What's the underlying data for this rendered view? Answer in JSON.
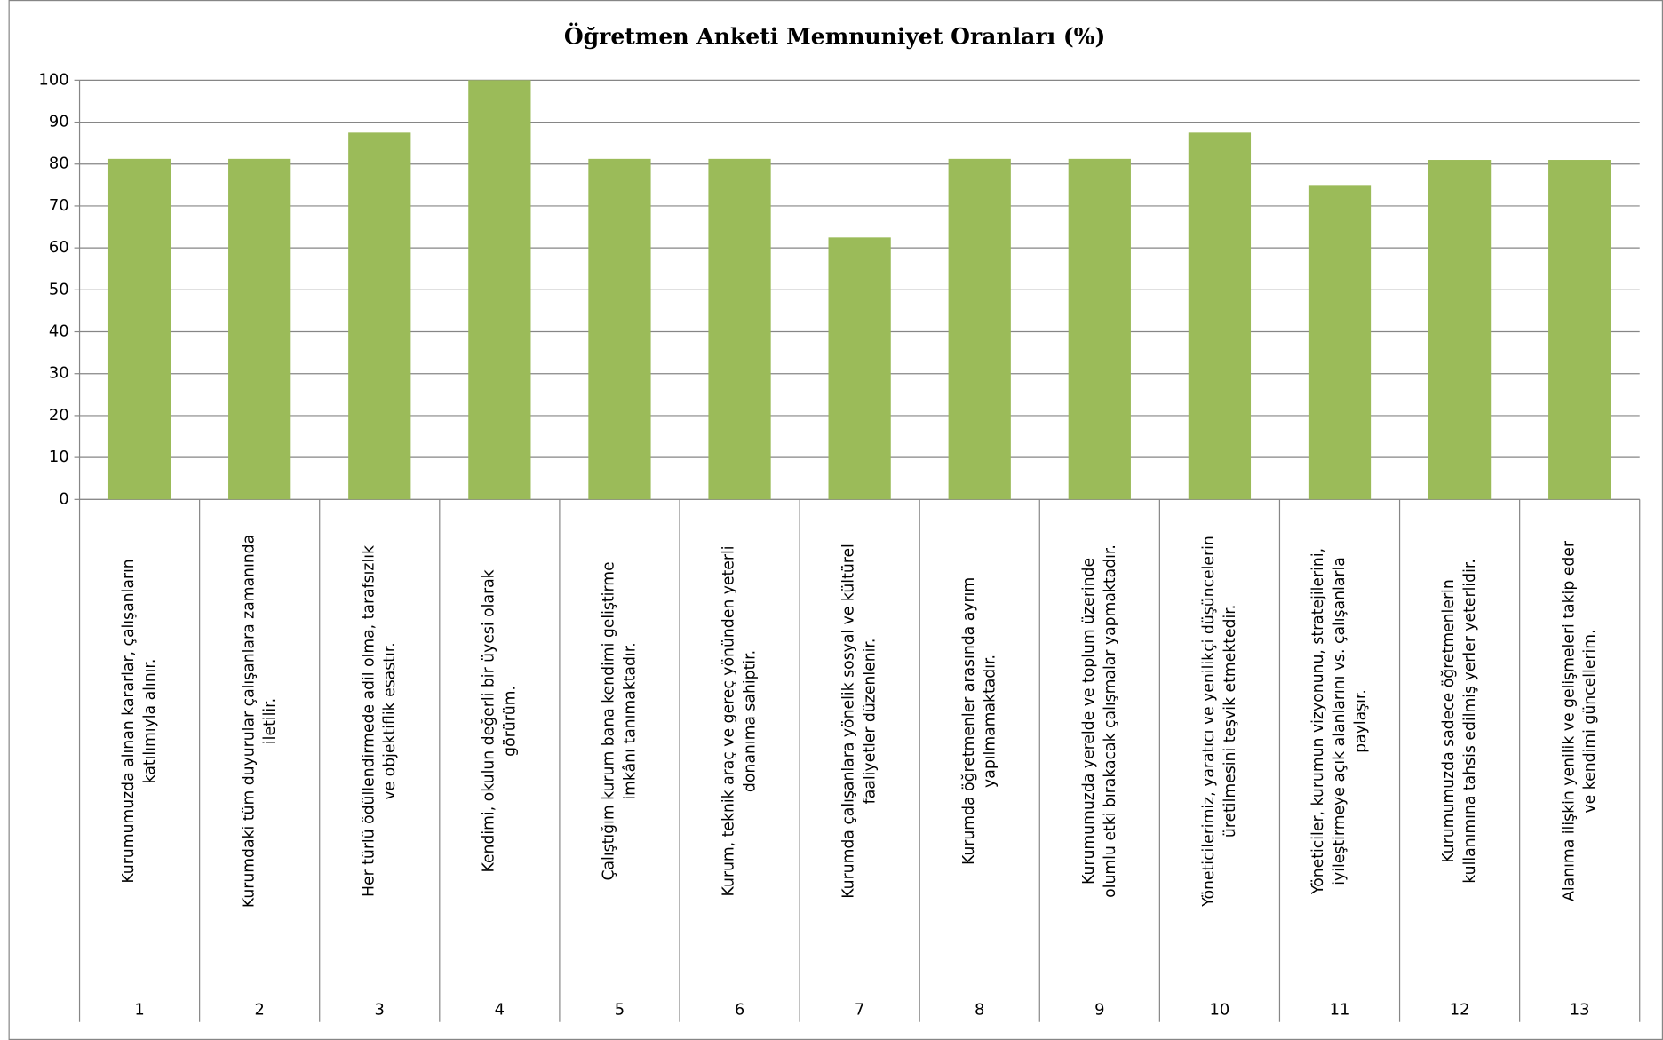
{
  "chart_data": {
    "type": "bar",
    "title": "Öğretmen Anketi Memnuniyet Oranları (%)",
    "categories": [
      "1",
      "2",
      "3",
      "4",
      "5",
      "6",
      "7",
      "8",
      "9",
      "10",
      "11",
      "12",
      "13"
    ],
    "statements": [
      [
        "Kurumumuzda alınan kararlar, çalışanların",
        "katılımıyla alınır."
      ],
      [
        "Kurumdaki tüm duyurular çalışanlara zamanında",
        "iletilir."
      ],
      [
        "Her türlü ödüllendirmede adil olma, tarafsızlık",
        "ve objektiflik esastır."
      ],
      [
        "Kendimi, okulun değerli bir üyesi olarak",
        "görürüm."
      ],
      [
        "Çalıştığım kurum bana kendimi geliştirme",
        "imkânı tanımaktadır."
      ],
      [
        "Kurum, teknik araç ve gereç yönünden yeterli",
        "donanıma sahiptir."
      ],
      [
        "Kurumda çalışanlara yönelik sosyal ve kültürel",
        "faaliyetler düzenlenir."
      ],
      [
        "Kurumda öğretmenler arasında ayrım",
        "yapılmamaktadır."
      ],
      [
        "Kurumumuzda yerelde ve toplum üzerinde",
        "olumlu etki bırakacak çalışmalar yapmaktadır."
      ],
      [
        "Yöneticilerimiz, yaratıcı ve yenilikçi düşüncelerin",
        "üretilmesini teşvik etmektedir."
      ],
      [
        "Yöneticiler, kurumun vizyonunu, stratejilerini,",
        "iyileştirmeye açık alanlarını vs. çalışanlarla",
        "paylaşır."
      ],
      [
        "Kurumumuzda sadece öğretmenlerin",
        "kullanımına tahsis edilmiş yerler yeterlidir."
      ],
      [
        "Alanıma ilişkin yenilik ve gelişmeleri takip eder",
        "ve kendimi güncellerim."
      ]
    ],
    "values": [
      81.25,
      81.25,
      87.5,
      100,
      81.25,
      81.25,
      62.5,
      81.25,
      81.25,
      87.5,
      75,
      81,
      81
    ],
    "color": "#9bbb59",
    "ylim": [
      0,
      100
    ],
    "yticks": [
      0,
      10,
      20,
      30,
      40,
      50,
      60,
      70,
      80,
      90,
      100
    ],
    "grid": true
  }
}
